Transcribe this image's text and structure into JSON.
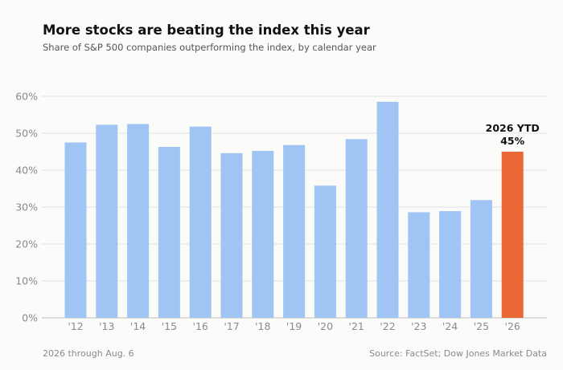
{
  "title": "More stocks are beating the index this year",
  "subtitle": "Share of S&P 500 companies outperforming the index, by calendar year",
  "footnote": "2026 through Aug. 6",
  "source": "Source: FactSet; Dow Jones Market Data",
  "colors": {
    "bar": "#a0c4f3",
    "highlight": "#e86734",
    "grid": "#e2e2e2",
    "axis": "#bdbdbd",
    "tick_text": "#8a8a8a"
  },
  "chart_data": {
    "type": "bar",
    "categories": [
      "'12",
      "'13",
      "'14",
      "'15",
      "'16",
      "'17",
      "'18",
      "'19",
      "'20",
      "'21",
      "'22",
      "'23",
      "'24",
      "'25",
      "'26"
    ],
    "values": [
      47.5,
      52.3,
      52.5,
      46.3,
      51.8,
      44.6,
      45.2,
      46.8,
      35.8,
      48.4,
      58.5,
      28.6,
      28.9,
      31.9,
      45.0
    ],
    "highlight_index": 14,
    "y_ticks": [
      "0%",
      "10%",
      "20%",
      "30%",
      "40%",
      "50%",
      "60%"
    ],
    "ylim": [
      0,
      60
    ],
    "grid": true,
    "annotation": {
      "line1": "2026 YTD",
      "line2": "45%"
    }
  }
}
